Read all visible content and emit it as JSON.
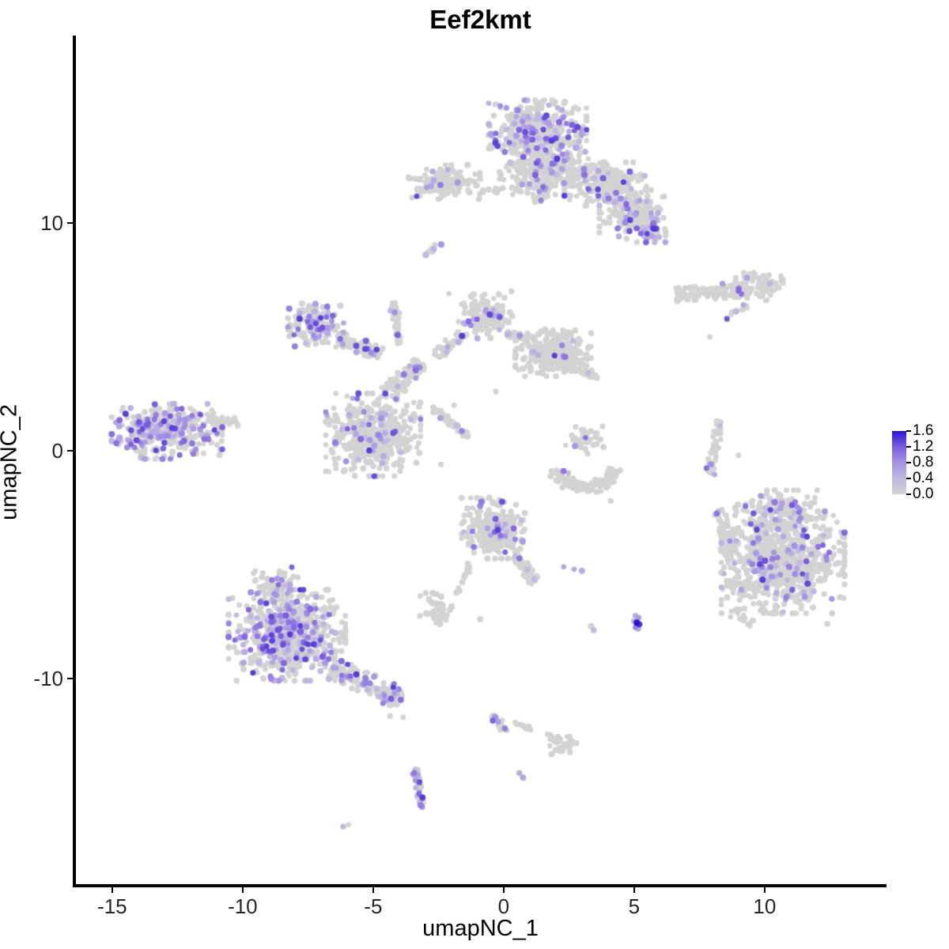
{
  "chart_data": {
    "type": "scatter",
    "title": "Eef2kmt",
    "xlabel": "umapNC_1",
    "ylabel": "umapNC_2",
    "xlim": [
      -16.42,
      14.64
    ],
    "ylim": [
      -19.03,
      18.23
    ],
    "xticks": [
      -15,
      -10,
      -5,
      0,
      5,
      10
    ],
    "yticks": [
      10,
      0,
      -10
    ],
    "grid": false,
    "legend": {
      "position": "right",
      "ticks": [
        1.6,
        1.2,
        0.8,
        0.4,
        0.0
      ],
      "vmax": 1.6
    },
    "colors": {
      "background": "#ffffff",
      "axis": "#000000",
      "zero_expression": "#d3d3d3",
      "ramp_stops": [
        {
          "t": 0.0,
          "color": "#d3d3d3"
        },
        {
          "t": 0.25,
          "color": "#c0b7e1"
        },
        {
          "t": 0.5,
          "color": "#a492e3"
        },
        {
          "t": 0.75,
          "color": "#7a5ede"
        },
        {
          "t": 1.0,
          "color": "#2b15d3"
        }
      ]
    },
    "point_radius_px": 3.7,
    "seed": 42,
    "value_range_nonzero": [
      0.35,
      1.4
    ],
    "clusters": [
      {
        "name": "top-main-upper",
        "type": "blob",
        "c": [
          1.3,
          14.0
        ],
        "r": [
          1.55,
          1.15
        ],
        "n": 430,
        "frac": 0.2
      },
      {
        "name": "top-main-lower",
        "type": "blob",
        "c": [
          1.9,
          12.4
        ],
        "r": [
          1.7,
          0.95
        ],
        "n": 280,
        "frac": 0.13
      },
      {
        "name": "top-arm-right",
        "type": "blob",
        "c": [
          3.9,
          11.7
        ],
        "r": [
          1.3,
          0.8
        ],
        "n": 200,
        "frac": 0.1
      },
      {
        "name": "top-arm-lowright",
        "type": "blob",
        "c": [
          5.0,
          10.4
        ],
        "r": [
          1.1,
          0.9
        ],
        "n": 170,
        "frac": 0.12
      },
      {
        "name": "top-purple-pocket",
        "type": "blob",
        "c": [
          5.6,
          9.7
        ],
        "r": [
          0.5,
          0.45
        ],
        "n": 45,
        "frac": 0.45
      },
      {
        "name": "top-neck",
        "type": "band",
        "from": [
          1.35,
          10.9
        ],
        "to": [
          1.6,
          12.0
        ],
        "thick": 0.25,
        "n": 40,
        "frac": 0.08
      },
      {
        "name": "top-left-cluster",
        "type": "blob",
        "c": [
          -2.3,
          11.8
        ],
        "r": [
          1.15,
          0.62
        ],
        "n": 140,
        "frac": 0.07
      },
      {
        "name": "top-bridge",
        "type": "band",
        "from": [
          -0.9,
          11.4
        ],
        "to": [
          1.0,
          11.5
        ],
        "thick": 0.15,
        "n": 18,
        "frac": 0.0
      },
      {
        "name": "top-tendril",
        "type": "band",
        "from": [
          -3.0,
          8.6
        ],
        "to": [
          -2.4,
          9.1
        ],
        "thick": 0.12,
        "n": 8,
        "frac": 0.2
      },
      {
        "name": "right-band",
        "type": "band",
        "from": [
          6.6,
          6.9
        ],
        "to": [
          9.2,
          7.1
        ],
        "thick": 0.3,
        "n": 110,
        "frac": 0.05
      },
      {
        "name": "right-band-blob",
        "type": "blob",
        "c": [
          9.8,
          7.25
        ],
        "r": [
          0.75,
          0.55
        ],
        "n": 75,
        "frac": 0.02
      },
      {
        "name": "right-band-diag",
        "type": "band",
        "from": [
          8.5,
          5.8
        ],
        "to": [
          9.3,
          6.4
        ],
        "thick": 0.15,
        "n": 12,
        "frac": 0.25
      },
      {
        "name": "midleft-lobe",
        "type": "blob",
        "c": [
          -7.2,
          5.5
        ],
        "r": [
          0.88,
          0.8
        ],
        "n": 155,
        "frac": 0.3
      },
      {
        "name": "midleft-chain",
        "type": "band",
        "from": [
          -6.4,
          4.9
        ],
        "to": [
          -4.7,
          4.25
        ],
        "thick": 0.3,
        "n": 85,
        "frac": 0.15
      },
      {
        "name": "mid-vchain",
        "type": "band",
        "from": [
          -4.05,
          4.7
        ],
        "to": [
          -4.2,
          6.5
        ],
        "thick": 0.15,
        "n": 35,
        "frac": 0.1
      },
      {
        "name": "center-blob",
        "type": "blob",
        "c": [
          -5.0,
          0.7
        ],
        "r": [
          1.5,
          1.5
        ],
        "n": 430,
        "frac": 0.12
      },
      {
        "name": "center-junction",
        "type": "band",
        "from": [
          -4.4,
          2.5
        ],
        "to": [
          -3.2,
          3.9
        ],
        "thick": 0.35,
        "n": 95,
        "frac": 0.09
      },
      {
        "name": "center-streak",
        "type": "band",
        "from": [
          -2.75,
          1.9
        ],
        "to": [
          -1.35,
          0.65
        ],
        "thick": 0.12,
        "n": 45,
        "frac": 0.06
      },
      {
        "name": "mid-lobe",
        "type": "blob",
        "c": [
          -0.7,
          5.9
        ],
        "r": [
          0.85,
          0.8
        ],
        "n": 135,
        "frac": 0.1
      },
      {
        "name": "mid-chain",
        "type": "band",
        "from": [
          -1.6,
          5.1
        ],
        "to": [
          -2.6,
          4.1
        ],
        "thick": 0.25,
        "n": 35,
        "frac": 0.06
      },
      {
        "name": "midright-cluster",
        "type": "blob",
        "c": [
          1.9,
          4.3
        ],
        "r": [
          1.2,
          0.85
        ],
        "n": 290,
        "frac": 0.04
      },
      {
        "name": "midright-bridge",
        "type": "band",
        "from": [
          0.1,
          5.2
        ],
        "to": [
          1.0,
          4.8
        ],
        "thick": 0.2,
        "n": 30,
        "frac": 0.07
      },
      {
        "name": "midright-tail",
        "type": "band",
        "from": [
          2.6,
          3.6
        ],
        "to": [
          3.6,
          3.2
        ],
        "thick": 0.2,
        "n": 25,
        "frac": 0.04
      },
      {
        "name": "left-cluster",
        "type": "blob",
        "c": [
          -12.9,
          0.85
        ],
        "r": [
          1.75,
          1.0
        ],
        "n": 340,
        "frac": 0.38
      },
      {
        "name": "left-cluster-tail",
        "type": "band",
        "from": [
          -11.2,
          1.2
        ],
        "to": [
          -10.2,
          1.35
        ],
        "thick": 0.25,
        "n": 30,
        "frac": 0.05
      },
      {
        "name": "arc-cluster",
        "type": "arc",
        "c": [
          3.15,
          -0.5
        ],
        "radius": 1.15,
        "a0": 195,
        "a1": 345,
        "thick": 0.3,
        "n": 120,
        "frac": 0.02
      },
      {
        "name": "arc-upper",
        "type": "blob",
        "c": [
          3.1,
          0.6
        ],
        "r": [
          0.6,
          0.6
        ],
        "n": 35,
        "frac": 0.08
      },
      {
        "name": "right-strip",
        "type": "band",
        "from": [
          8.3,
          1.3
        ],
        "to": [
          7.9,
          -1.05
        ],
        "thick": 0.16,
        "n": 45,
        "frac": 0.1
      },
      {
        "name": "centerlow-blob",
        "type": "blob",
        "c": [
          -0.4,
          -3.4
        ],
        "r": [
          1.0,
          1.1
        ],
        "n": 270,
        "frac": 0.11
      },
      {
        "name": "centerlow-tail",
        "type": "band",
        "from": [
          0.4,
          -4.6
        ],
        "to": [
          1.25,
          -5.8
        ],
        "thick": 0.2,
        "n": 55,
        "frac": 0.12
      },
      {
        "name": "purple-trio",
        "type": "points",
        "pts": [
          [
            2.3,
            -5.1,
            0.6
          ],
          [
            2.7,
            -5.2,
            0.55
          ],
          [
            3.0,
            -5.27,
            0.5
          ]
        ]
      },
      {
        "name": "centerlow-tendril",
        "type": "band",
        "from": [
          -1.3,
          -4.9
        ],
        "to": [
          -1.75,
          -6.3
        ],
        "thick": 0.12,
        "n": 14,
        "frac": 0.08
      },
      {
        "name": "small-grey-blob",
        "type": "blob",
        "c": [
          -2.6,
          -7.0
        ],
        "r": [
          0.5,
          0.62
        ],
        "n": 45,
        "frac": 0.02
      },
      {
        "name": "dark-dot-cluster",
        "type": "points",
        "pts": [
          [
            5.05,
            -7.25,
            0.5
          ],
          [
            5.17,
            -7.33,
            0.7
          ],
          [
            4.98,
            -7.48,
            0.35
          ],
          [
            5.1,
            -7.55,
            1.6
          ],
          [
            5.2,
            -7.62,
            1.45
          ],
          [
            5.05,
            -7.76,
            0.9
          ],
          [
            5.16,
            -7.82,
            0.6
          ]
        ]
      },
      {
        "name": "botright-main",
        "type": "blob",
        "c": [
          10.7,
          -4.9
        ],
        "r": [
          1.95,
          1.85
        ],
        "n": 760,
        "frac": 0.13
      },
      {
        "name": "botright-top",
        "type": "blob",
        "c": [
          10.5,
          -2.7
        ],
        "r": [
          1.35,
          0.8
        ],
        "n": 150,
        "frac": 0.12
      },
      {
        "name": "botright-fringe",
        "type": "band",
        "from": [
          8.2,
          -2.6
        ],
        "to": [
          8.9,
          -5.0
        ],
        "thick": 0.35,
        "n": 70,
        "frac": 0.06
      },
      {
        "name": "botright-sparse",
        "type": "band",
        "from": [
          8.7,
          -7.1
        ],
        "to": [
          9.5,
          -7.6
        ],
        "thick": 0.2,
        "n": 12,
        "frac": 0.0
      },
      {
        "name": "botleft-main",
        "type": "blob",
        "c": [
          -8.3,
          -8.1
        ],
        "r": [
          1.85,
          1.65
        ],
        "n": 640,
        "frac": 0.28
      },
      {
        "name": "botleft-knob",
        "type": "blob",
        "c": [
          -8.8,
          -5.9
        ],
        "r": [
          0.75,
          0.65
        ],
        "n": 85,
        "frac": 0.15
      },
      {
        "name": "botleft-tail",
        "type": "band",
        "from": [
          -6.6,
          -9.6
        ],
        "to": [
          -3.9,
          -10.9
        ],
        "thick": 0.45,
        "n": 175,
        "frac": 0.22
      },
      {
        "name": "bottom-sc1",
        "type": "band",
        "from": [
          -0.45,
          -11.65
        ],
        "to": [
          0.1,
          -12.35
        ],
        "thick": 0.15,
        "n": 20,
        "frac": 0.35
      },
      {
        "name": "bottom-sc1-trail",
        "type": "band",
        "from": [
          0.4,
          -11.95
        ],
        "to": [
          1.15,
          -12.2
        ],
        "thick": 0.1,
        "n": 7,
        "frac": 0.0
      },
      {
        "name": "bottom-sc2",
        "type": "blob",
        "c": [
          2.2,
          -12.9
        ],
        "r": [
          0.5,
          0.35
        ],
        "n": 28,
        "frac": 0.0
      },
      {
        "name": "bottom-sc2-tail",
        "type": "band",
        "from": [
          1.55,
          -12.35
        ],
        "to": [
          1.95,
          -12.65
        ],
        "thick": 0.1,
        "n": 6,
        "frac": 0.0
      },
      {
        "name": "bottom-strip",
        "type": "band",
        "from": [
          -3.35,
          -13.9
        ],
        "to": [
          -3.2,
          -15.7
        ],
        "thick": 0.17,
        "n": 30,
        "frac": 0.5
      },
      {
        "name": "bottom-pair",
        "type": "points",
        "pts": [
          [
            0.6,
            -14.15,
            0.5
          ],
          [
            0.74,
            -14.35,
            0.55
          ]
        ]
      },
      {
        "name": "bottom-left-pair",
        "type": "points",
        "pts": [
          [
            -6.15,
            -16.5,
            0.45
          ],
          [
            -5.95,
            -16.42,
            0
          ]
        ]
      },
      {
        "name": "scattered-singles",
        "type": "points",
        "pts": [
          [
            4.1,
            -2.2,
            0
          ],
          [
            -0.9,
            -7.4,
            0
          ],
          [
            3.35,
            -7.7,
            0
          ],
          [
            3.45,
            -7.88,
            0.35
          ],
          [
            -4.35,
            -11.65,
            0
          ],
          [
            -3.85,
            -11.7,
            0
          ],
          [
            7.9,
            5.0,
            0
          ],
          [
            -2.1,
            6.9,
            0
          ],
          [
            0.3,
            7.0,
            0
          ],
          [
            -0.3,
            2.6,
            0
          ],
          [
            -1.9,
            2.0,
            0
          ],
          [
            -2.4,
            -0.6,
            0
          ],
          [
            12.4,
            -7.6,
            0
          ],
          [
            9.0,
            -0.2,
            0
          ]
        ]
      }
    ]
  }
}
